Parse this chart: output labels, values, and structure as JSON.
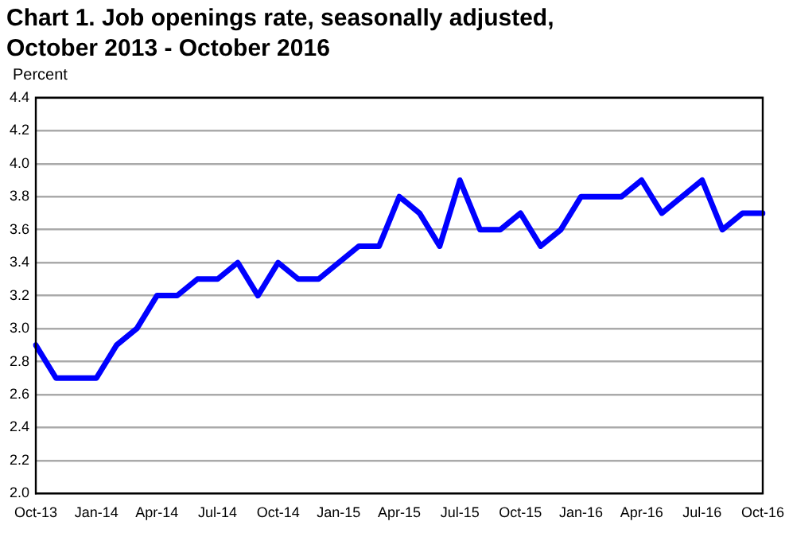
{
  "chart_data": {
    "type": "line",
    "title": "Chart 1. Job openings rate, seasonally adjusted, October 2013 - October 2016",
    "ylabel": "Percent",
    "categories": [
      "Oct-13",
      null,
      null,
      "Jan-14",
      null,
      null,
      "Apr-14",
      null,
      null,
      "Jul-14",
      null,
      null,
      "Oct-14",
      null,
      null,
      "Jan-15",
      null,
      null,
      "Apr-15",
      null,
      null,
      "Jul-15",
      null,
      null,
      "Oct-15",
      null,
      null,
      "Jan-16",
      null,
      null,
      "Apr-16",
      null,
      null,
      "Jul-16",
      null,
      null,
      "Oct-16"
    ],
    "series": [
      {
        "color": "#0000ff",
        "values": [
          2.9,
          2.7,
          2.7,
          2.7,
          2.9,
          3.0,
          3.2,
          3.2,
          3.3,
          3.3,
          3.4,
          3.2,
          3.4,
          3.3,
          3.3,
          3.4,
          3.5,
          3.5,
          3.8,
          3.7,
          3.5,
          3.9,
          3.6,
          3.6,
          3.7,
          3.5,
          3.6,
          3.8,
          3.8,
          3.8,
          3.9,
          3.7,
          3.8,
          3.9,
          3.6,
          3.7,
          3.7
        ]
      }
    ],
    "ylim": [
      2.0,
      4.4
    ],
    "yticks": [
      {
        "value": 2,
        "label": "2.0"
      },
      2.2,
      2.4,
      2.6,
      2.8,
      {
        "value": 3,
        "label": "3.0"
      },
      3.2,
      3.4,
      3.6,
      3.8,
      {
        "value": 4,
        "label": "4.0"
      },
      4.2,
      4.4
    ],
    "grid": "y",
    "legend": false,
    "marker": "none",
    "line_style": "solid"
  }
}
